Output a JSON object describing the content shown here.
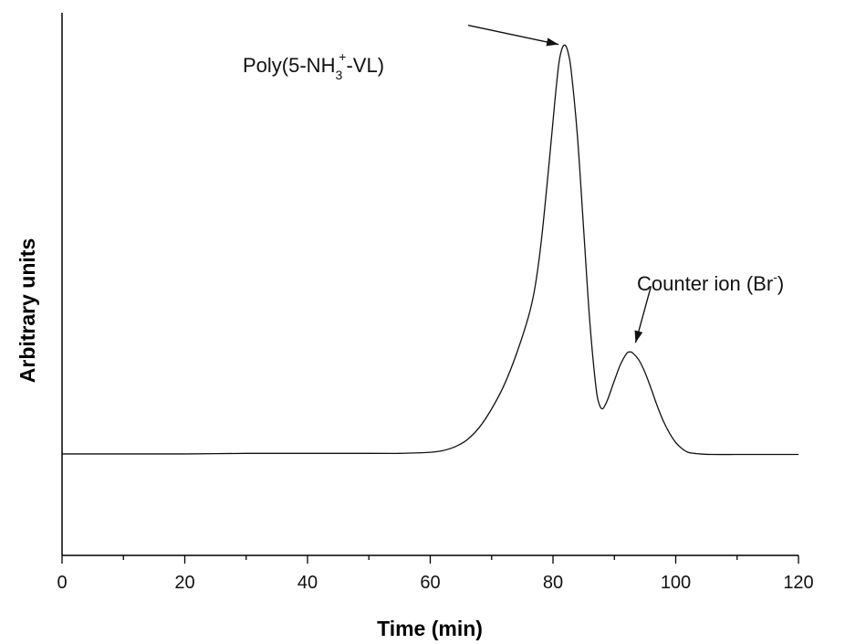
{
  "chart_data": {
    "type": "line",
    "xlabel": "Time (min)",
    "ylabel": "Arbitrary units",
    "xlim": [
      0,
      120
    ],
    "ylim": [
      0,
      1
    ],
    "x_ticks": [
      0,
      20,
      40,
      60,
      80,
      100,
      120
    ],
    "y_ticks_labeled": false,
    "grid": false,
    "series": [
      {
        "x": [
          0,
          10,
          20,
          30,
          40,
          50,
          55,
          58,
          60,
          62,
          64,
          66,
          68,
          70,
          72,
          74,
          76,
          77,
          78,
          79,
          80,
          80.5,
          81,
          81.5,
          82,
          82.5,
          83,
          84,
          85,
          86,
          87,
          87.5,
          88,
          88.5,
          89,
          90,
          91,
          92,
          92.5,
          93,
          94,
          95,
          96,
          97,
          98,
          99,
          100,
          101,
          102,
          103,
          104,
          106,
          110,
          115,
          120
        ],
        "y": [
          0.187,
          0.187,
          0.187,
          0.188,
          0.188,
          0.188,
          0.188,
          0.189,
          0.19,
          0.193,
          0.2,
          0.213,
          0.236,
          0.27,
          0.313,
          0.37,
          0.44,
          0.49,
          0.57,
          0.68,
          0.8,
          0.86,
          0.91,
          0.935,
          0.94,
          0.925,
          0.89,
          0.77,
          0.6,
          0.43,
          0.31,
          0.28,
          0.27,
          0.277,
          0.29,
          0.322,
          0.352,
          0.372,
          0.375,
          0.373,
          0.36,
          0.337,
          0.307,
          0.275,
          0.247,
          0.225,
          0.208,
          0.197,
          0.19,
          0.188,
          0.187,
          0.186,
          0.186,
          0.186,
          0.186
        ]
      }
    ],
    "annotations": [
      {
        "text_main": "Poly(5-NH",
        "text_sub": "3",
        "text_sup": "+",
        "text_end": "-VL)",
        "arrow_to": [
          81.5,
          0.94
        ]
      },
      {
        "text_main": "Counter ion (Br",
        "text_sup": "-",
        "text_end": ")",
        "arrow_to": [
          93,
          0.375
        ]
      }
    ]
  }
}
